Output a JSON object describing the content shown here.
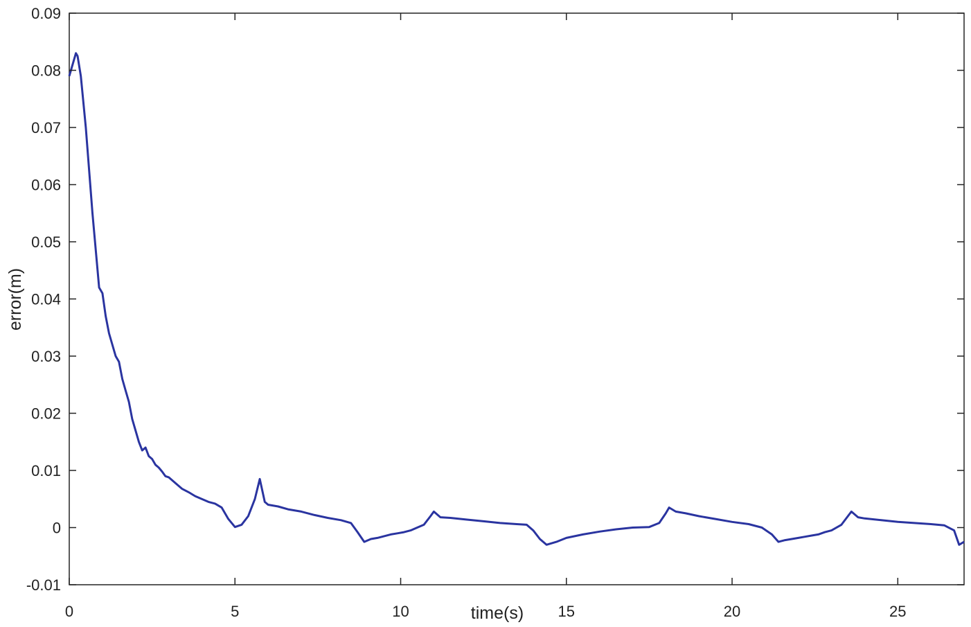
{
  "chart_data": {
    "type": "line",
    "title": "",
    "xlabel": "time(s)",
    "ylabel": "error(m)",
    "xlim": [
      0,
      27
    ],
    "ylim": [
      -0.01,
      0.09
    ],
    "x_ticks": [
      0,
      5,
      10,
      15,
      20,
      25
    ],
    "x_tick_labels": [
      "0",
      "5",
      "10",
      "15",
      "20",
      "25"
    ],
    "y_ticks": [
      -0.01,
      0,
      0.01,
      0.02,
      0.03,
      0.04,
      0.05,
      0.06,
      0.07,
      0.08,
      0.09
    ],
    "y_tick_labels": [
      "-0.01",
      "0",
      "0.01",
      "0.02",
      "0.03",
      "0.04",
      "0.05",
      "0.06",
      "0.07",
      "0.08",
      "0.09"
    ],
    "grid": false,
    "line_color": "#2a34a0",
    "series": [
      {
        "x": [
          0,
          0.1,
          0.2,
          0.25,
          0.35,
          0.5,
          0.7,
          0.9,
          1.0,
          1.1,
          1.2,
          1.3,
          1.4,
          1.5,
          1.6,
          1.7,
          1.8,
          1.9,
          2.0,
          2.1,
          2.2,
          2.3,
          2.4,
          2.5,
          2.6,
          2.7,
          2.8,
          2.9,
          3.0,
          3.2,
          3.4,
          3.6,
          3.8,
          4.0,
          4.2,
          4.4,
          4.6,
          4.8,
          5.0,
          5.2,
          5.4,
          5.6,
          5.75,
          5.9,
          6.0,
          6.3,
          6.6,
          7.0,
          7.4,
          7.8,
          8.2,
          8.5,
          8.7,
          8.9,
          9.1,
          9.3,
          9.5,
          9.7,
          9.9,
          10.1,
          10.3,
          10.5,
          10.7,
          10.9,
          11.0,
          11.2,
          11.5,
          12.0,
          12.5,
          13.0,
          13.5,
          13.8,
          14.0,
          14.2,
          14.4,
          14.7,
          15.0,
          15.5,
          16.0,
          16.5,
          17.0,
          17.5,
          17.8,
          18.0,
          18.1,
          18.3,
          18.6,
          19.0,
          19.5,
          20.0,
          20.5,
          20.9,
          21.2,
          21.4,
          21.6,
          21.8,
          22.0,
          22.2,
          22.4,
          22.6,
          22.8,
          23.0,
          23.3,
          23.6,
          23.8,
          24.0,
          24.5,
          25.0,
          25.5,
          26.0,
          26.4,
          26.7,
          26.85,
          27.0
        ],
        "y": [
          0.079,
          0.081,
          0.083,
          0.0825,
          0.079,
          0.07,
          0.055,
          0.042,
          0.041,
          0.037,
          0.034,
          0.032,
          0.03,
          0.029,
          0.026,
          0.024,
          0.022,
          0.019,
          0.017,
          0.015,
          0.0135,
          0.014,
          0.0125,
          0.012,
          0.011,
          0.0105,
          0.0098,
          0.009,
          0.0088,
          0.0078,
          0.0068,
          0.0062,
          0.0055,
          0.005,
          0.0045,
          0.0042,
          0.0035,
          0.0015,
          0.0001,
          0.0005,
          0.002,
          0.005,
          0.0085,
          0.0045,
          0.004,
          0.0037,
          0.0032,
          0.0028,
          0.0022,
          0.0017,
          0.0013,
          0.0008,
          -0.0008,
          -0.0025,
          -0.002,
          -0.0018,
          -0.0015,
          -0.0012,
          -0.001,
          -0.0008,
          -0.0005,
          0.0,
          0.0005,
          0.002,
          0.0028,
          0.0018,
          0.0017,
          0.0014,
          0.0011,
          0.0008,
          0.0006,
          0.0005,
          -0.0005,
          -0.002,
          -0.003,
          -0.0025,
          -0.0018,
          -0.0012,
          -0.0007,
          -0.0003,
          0.0,
          0.0001,
          0.0008,
          0.0025,
          0.0035,
          0.0028,
          0.0025,
          0.002,
          0.0015,
          0.001,
          0.0006,
          0.0,
          -0.0012,
          -0.0025,
          -0.0022,
          -0.002,
          -0.0018,
          -0.0016,
          -0.0014,
          -0.0012,
          -0.0008,
          -0.0005,
          0.0005,
          0.0028,
          0.0018,
          0.0016,
          0.0013,
          0.001,
          0.0008,
          0.0006,
          0.0004,
          -0.0005,
          -0.003,
          -0.0025
        ]
      }
    ]
  }
}
